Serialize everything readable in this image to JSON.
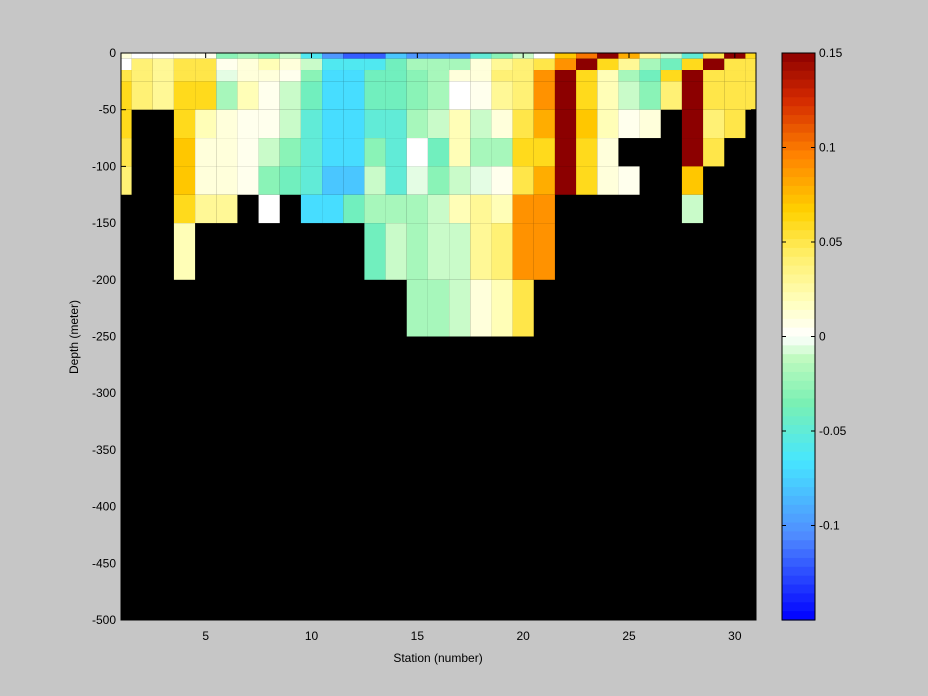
{
  "chart_data": {
    "type": "heatmap",
    "xlabel": "Station (number)",
    "ylabel": "Depth (meter)",
    "xlim": [
      1,
      31
    ],
    "ylim": [
      -500,
      0
    ],
    "xticks": [
      5,
      10,
      15,
      20,
      25,
      30
    ],
    "yticks": [
      0,
      -50,
      -100,
      -150,
      -200,
      -250,
      -300,
      -350,
      -400,
      -450,
      -500
    ],
    "color_range": [
      -0.15,
      0.15
    ],
    "colorbar_ticks": [
      "0.15",
      "0.1",
      "0.05",
      "0",
      "-0.05",
      "-0.1"
    ],
    "colorbar_tick_values": [
      0.15,
      0.1,
      0.05,
      0,
      -0.05,
      -0.1
    ],
    "missing_color": "#000000",
    "background_color": "#c6c6c6",
    "depth_levels": [
      0,
      -5,
      -15,
      -25,
      -50,
      -75,
      -100,
      -125,
      -150,
      -200,
      -250,
      -300,
      -400,
      -500
    ],
    "surface_values": [
      0.01,
      0,
      0,
      0.005,
      0.005,
      -0.03,
      -0.02,
      -0.03,
      -0.01,
      -0.06,
      -0.1,
      -0.12,
      -0.12,
      -0.08,
      -0.1,
      -0.1,
      -0.1,
      -0.05,
      -0.03,
      -0.01,
      0,
      0.07,
      0.1,
      0.15,
      0.08,
      0.03,
      -0.01,
      -0.05,
      0.05,
      0.15,
      0.06
    ],
    "depth_values": [
      [
        0,
        0.04,
        0.03,
        0.05,
        0.05,
        0.005,
        0.01,
        0.02,
        0.01,
        -0.01,
        -0.06,
        -0.06,
        -0.06,
        -0.04,
        -0.02,
        -0.02,
        -0.02,
        0.01,
        0.03,
        0.04,
        0.05,
        0.09,
        0.15,
        0.06,
        0.03,
        -0.02,
        -0.04,
        0.06,
        0.15,
        0.05,
        0.05
      ],
      [
        0.05,
        0.04,
        0.03,
        0.05,
        0.05,
        -0.005,
        0.01,
        0.01,
        0.005,
        -0.03,
        -0.07,
        -0.07,
        -0.04,
        -0.04,
        -0.03,
        -0.02,
        0.01,
        0.01,
        0.04,
        0.04,
        0.09,
        0.15,
        0.06,
        0.02,
        -0.02,
        -0.04,
        0.06,
        0.15,
        0.05,
        0.05,
        0.05
      ],
      [
        0.06,
        0.04,
        0.03,
        0.06,
        0.06,
        -0.02,
        0.02,
        0.005,
        -0.01,
        -0.04,
        -0.07,
        -0.07,
        -0.04,
        -0.04,
        -0.03,
        -0.02,
        0,
        0.005,
        0.03,
        0.04,
        0.09,
        0.15,
        0.06,
        0.02,
        -0.01,
        -0.03,
        0.04,
        0.15,
        0.05,
        0.05,
        0.05
      ],
      [
        0.06,
        null,
        null,
        0.06,
        0.02,
        0.01,
        0.005,
        0.005,
        -0.01,
        -0.05,
        -0.07,
        -0.07,
        -0.05,
        -0.05,
        -0.02,
        -0.01,
        0.02,
        -0.01,
        0.01,
        0.05,
        0.08,
        0.15,
        0.07,
        0.02,
        0.005,
        0.01,
        null,
        0.15,
        0.04,
        0.05,
        null
      ],
      [
        0.05,
        null,
        null,
        0.07,
        0.01,
        0.01,
        0.005,
        -0.01,
        -0.03,
        -0.05,
        -0.07,
        -0.07,
        -0.03,
        -0.05,
        0,
        -0.04,
        0.02,
        -0.02,
        -0.02,
        0.06,
        0.06,
        0.15,
        0.06,
        0.01,
        null,
        null,
        null,
        0.15,
        0.05,
        null,
        null
      ],
      [
        0.04,
        null,
        null,
        0.07,
        0.01,
        0.01,
        0.005,
        -0.03,
        -0.04,
        -0.05,
        -0.08,
        -0.08,
        -0.01,
        -0.05,
        -0.005,
        -0.03,
        -0.01,
        -0.005,
        0.005,
        0.05,
        0.08,
        0.15,
        0.06,
        0.01,
        0.005,
        null,
        null,
        0.07,
        null,
        null,
        null
      ],
      [
        null,
        null,
        null,
        0.06,
        0.03,
        0.03,
        null,
        0,
        null,
        -0.07,
        -0.07,
        -0.04,
        -0.02,
        -0.02,
        -0.02,
        -0.01,
        0.02,
        0.03,
        0.02,
        0.09,
        0.09,
        null,
        null,
        null,
        null,
        null,
        null,
        -0.01,
        null,
        null,
        null
      ],
      [
        null,
        null,
        null,
        0.02,
        null,
        null,
        null,
        null,
        null,
        null,
        null,
        null,
        -0.04,
        -0.01,
        -0.02,
        -0.01,
        -0.01,
        0.03,
        0.04,
        0.09,
        0.09,
        null,
        null,
        null,
        null,
        null,
        null,
        null,
        null,
        null,
        null
      ],
      [
        null,
        null,
        null,
        null,
        null,
        null,
        null,
        null,
        null,
        null,
        null,
        null,
        null,
        null,
        -0.02,
        -0.02,
        -0.01,
        0.01,
        0.02,
        0.05,
        null,
        null,
        null,
        null,
        null,
        null,
        null,
        null,
        null,
        null,
        null
      ],
      [
        null,
        null,
        null,
        null,
        null,
        null,
        null,
        null,
        null,
        null,
        null,
        null,
        null,
        null,
        null,
        null,
        null,
        null,
        null,
        null,
        null,
        null,
        null,
        null,
        null,
        null,
        null,
        null,
        null,
        null,
        null
      ]
    ]
  }
}
